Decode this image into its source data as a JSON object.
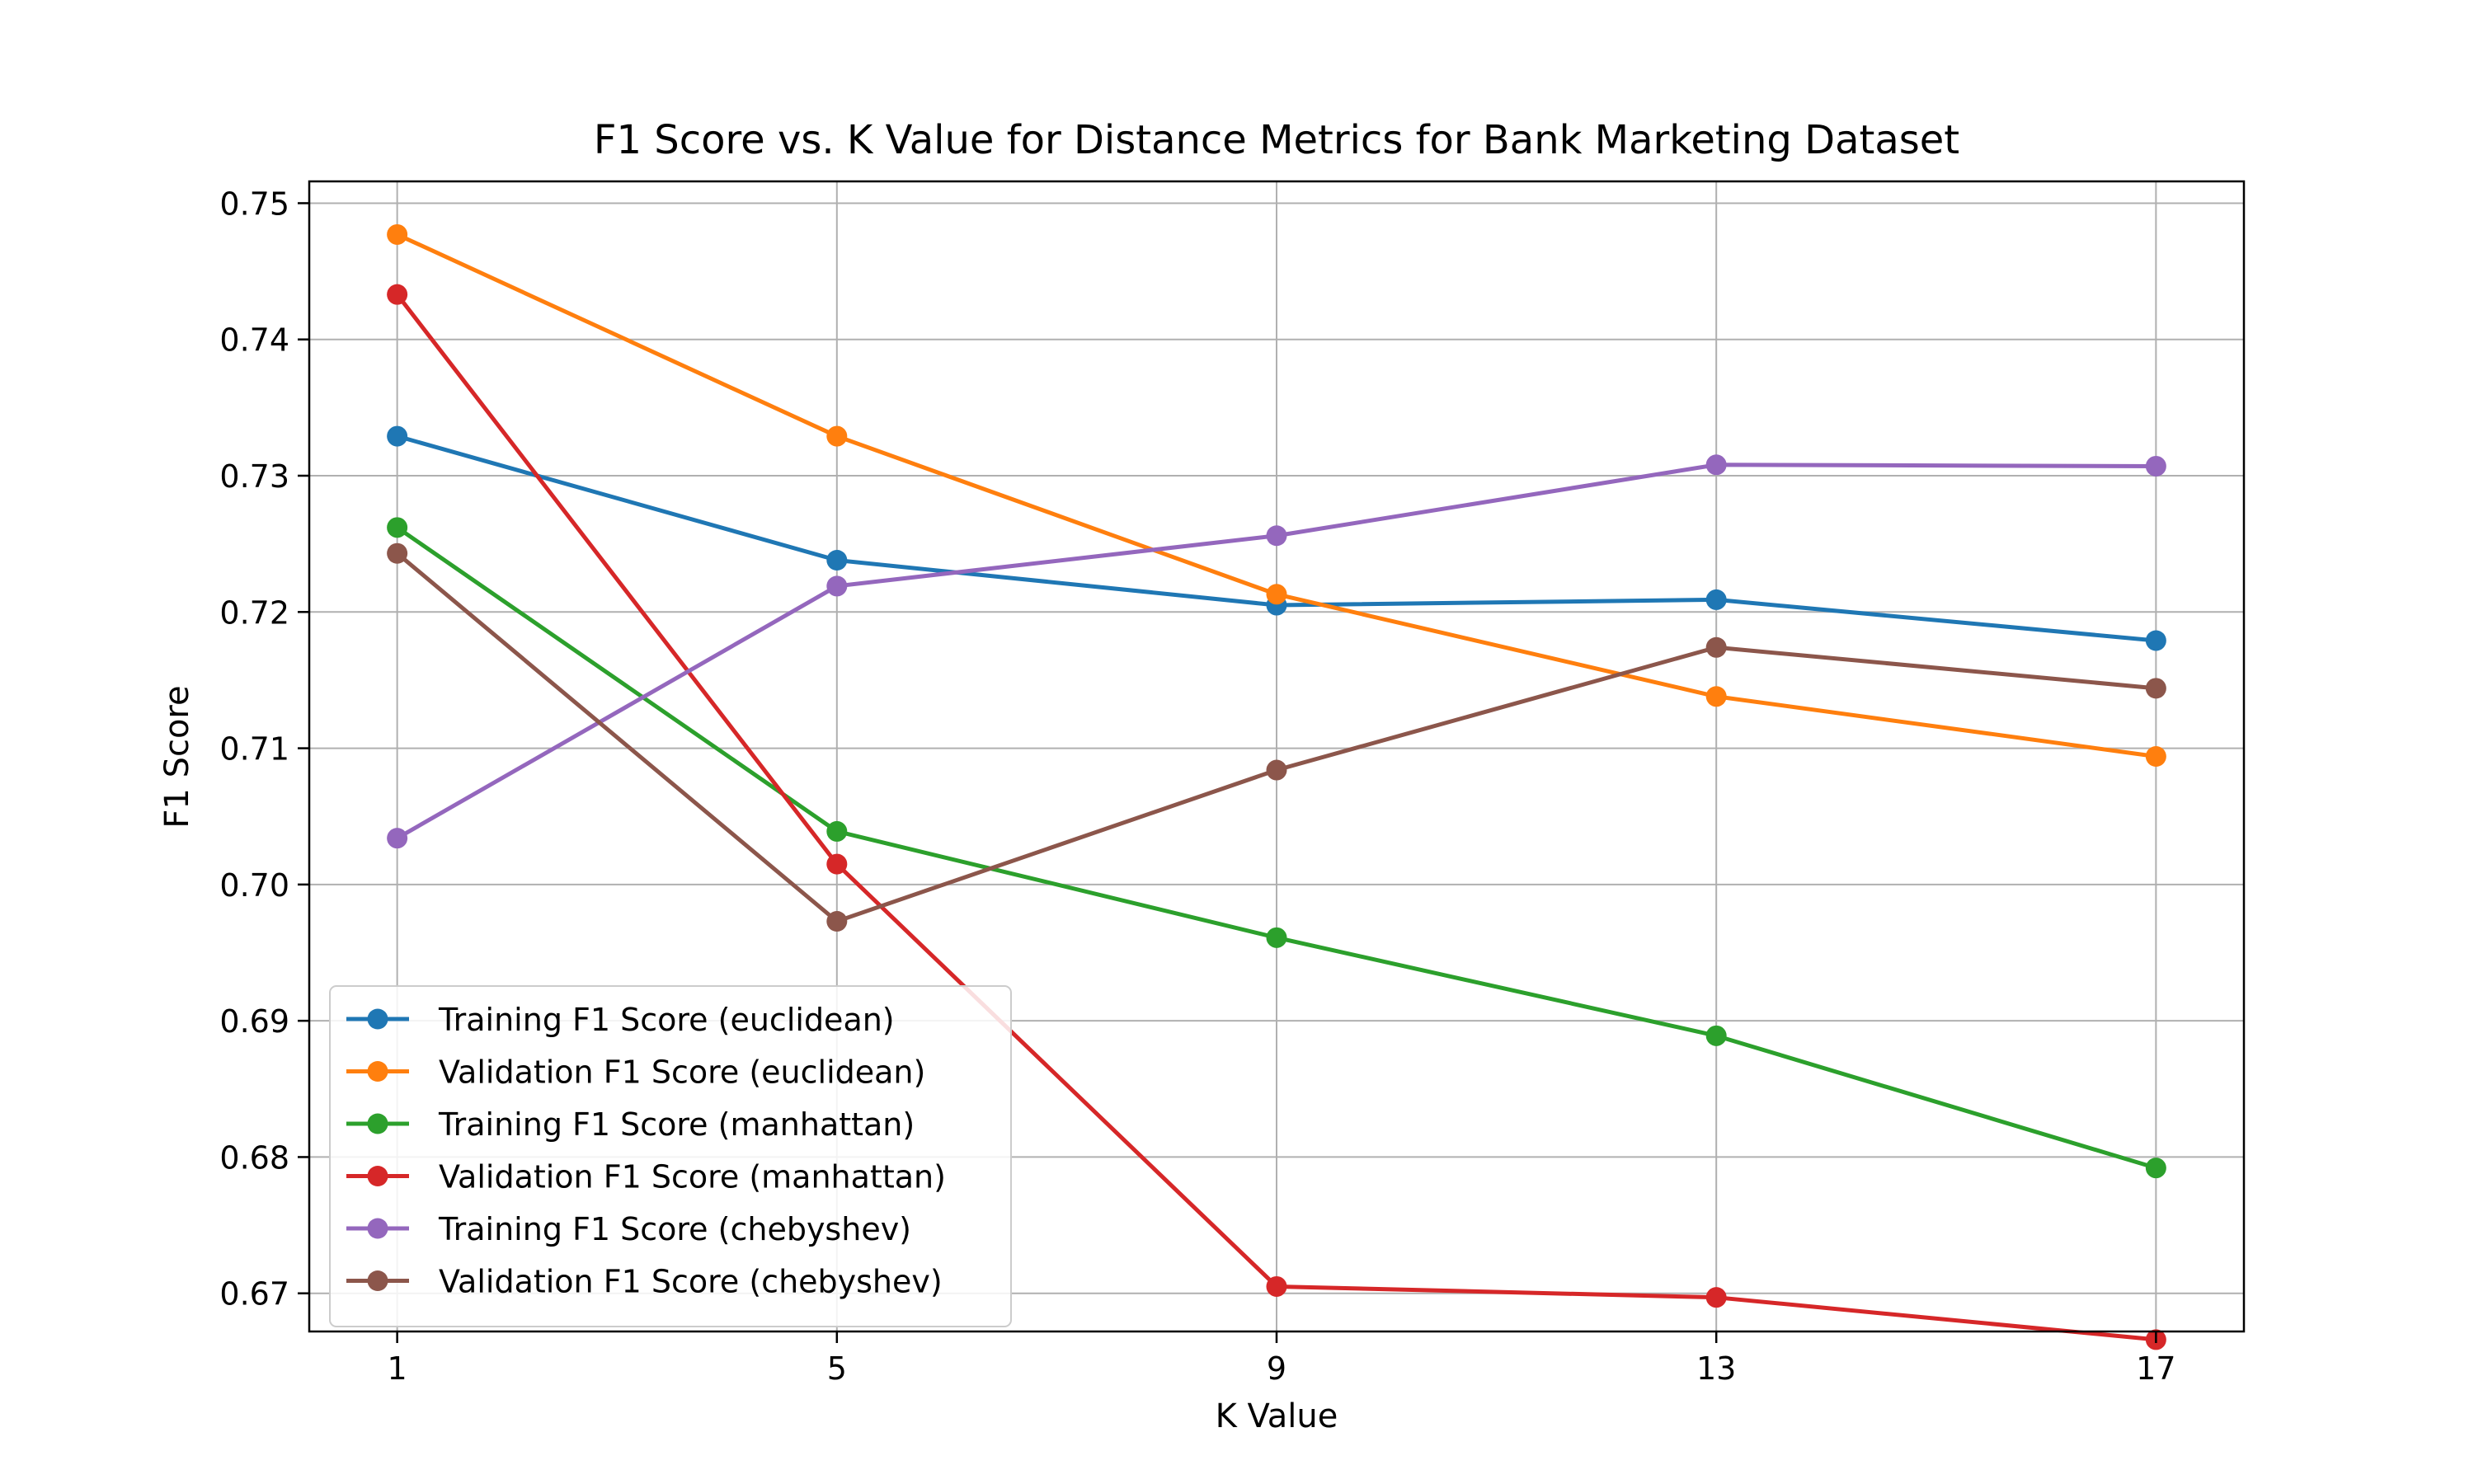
{
  "chart_data": {
    "type": "line",
    "title": "F1 Score vs. K Value for Distance Metrics for Bank Marketing Dataset",
    "xlabel": "K Value",
    "ylabel": "F1 Score",
    "x": [
      1,
      5,
      9,
      13,
      17
    ],
    "x_tick_labels": [
      "1",
      "5",
      "9",
      "13",
      "17"
    ],
    "xlim": [
      0.2,
      17.8
    ],
    "ylim": [
      0.6672,
      0.7516
    ],
    "y_ticks": [
      0.67,
      0.68,
      0.69,
      0.7,
      0.71,
      0.72,
      0.73,
      0.74,
      0.75
    ],
    "y_tick_labels": [
      "0.67",
      "0.68",
      "0.69",
      "0.70",
      "0.71",
      "0.72",
      "0.73",
      "0.74",
      "0.75"
    ],
    "grid": true,
    "legend_position": "lower-left",
    "series": [
      {
        "name": "Training F1 Score (euclidean)",
        "color": "#1f77b4",
        "values": [
          0.7329,
          0.7238,
          0.7205,
          0.7209,
          0.7179
        ]
      },
      {
        "name": "Validation F1 Score (euclidean)",
        "color": "#ff7f0e",
        "values": [
          0.7477,
          0.7329,
          0.7213,
          0.7138,
          0.7094
        ]
      },
      {
        "name": "Training F1 Score (manhattan)",
        "color": "#2ca02c",
        "values": [
          0.7262,
          0.7039,
          0.6961,
          0.6889,
          0.6792
        ]
      },
      {
        "name": "Validation F1 Score (manhattan)",
        "color": "#d62728",
        "values": [
          0.7433,
          0.7015,
          0.6705,
          0.6697,
          0.6666
        ]
      },
      {
        "name": "Training F1 Score (chebyshev)",
        "color": "#9467bd",
        "values": [
          0.7034,
          0.7219,
          0.7256,
          0.7308,
          0.7307
        ]
      },
      {
        "name": "Validation F1 Score (chebyshev)",
        "color": "#8c564b",
        "values": [
          0.7243,
          0.6973,
          0.7084,
          0.7174,
          0.7144
        ]
      }
    ]
  }
}
